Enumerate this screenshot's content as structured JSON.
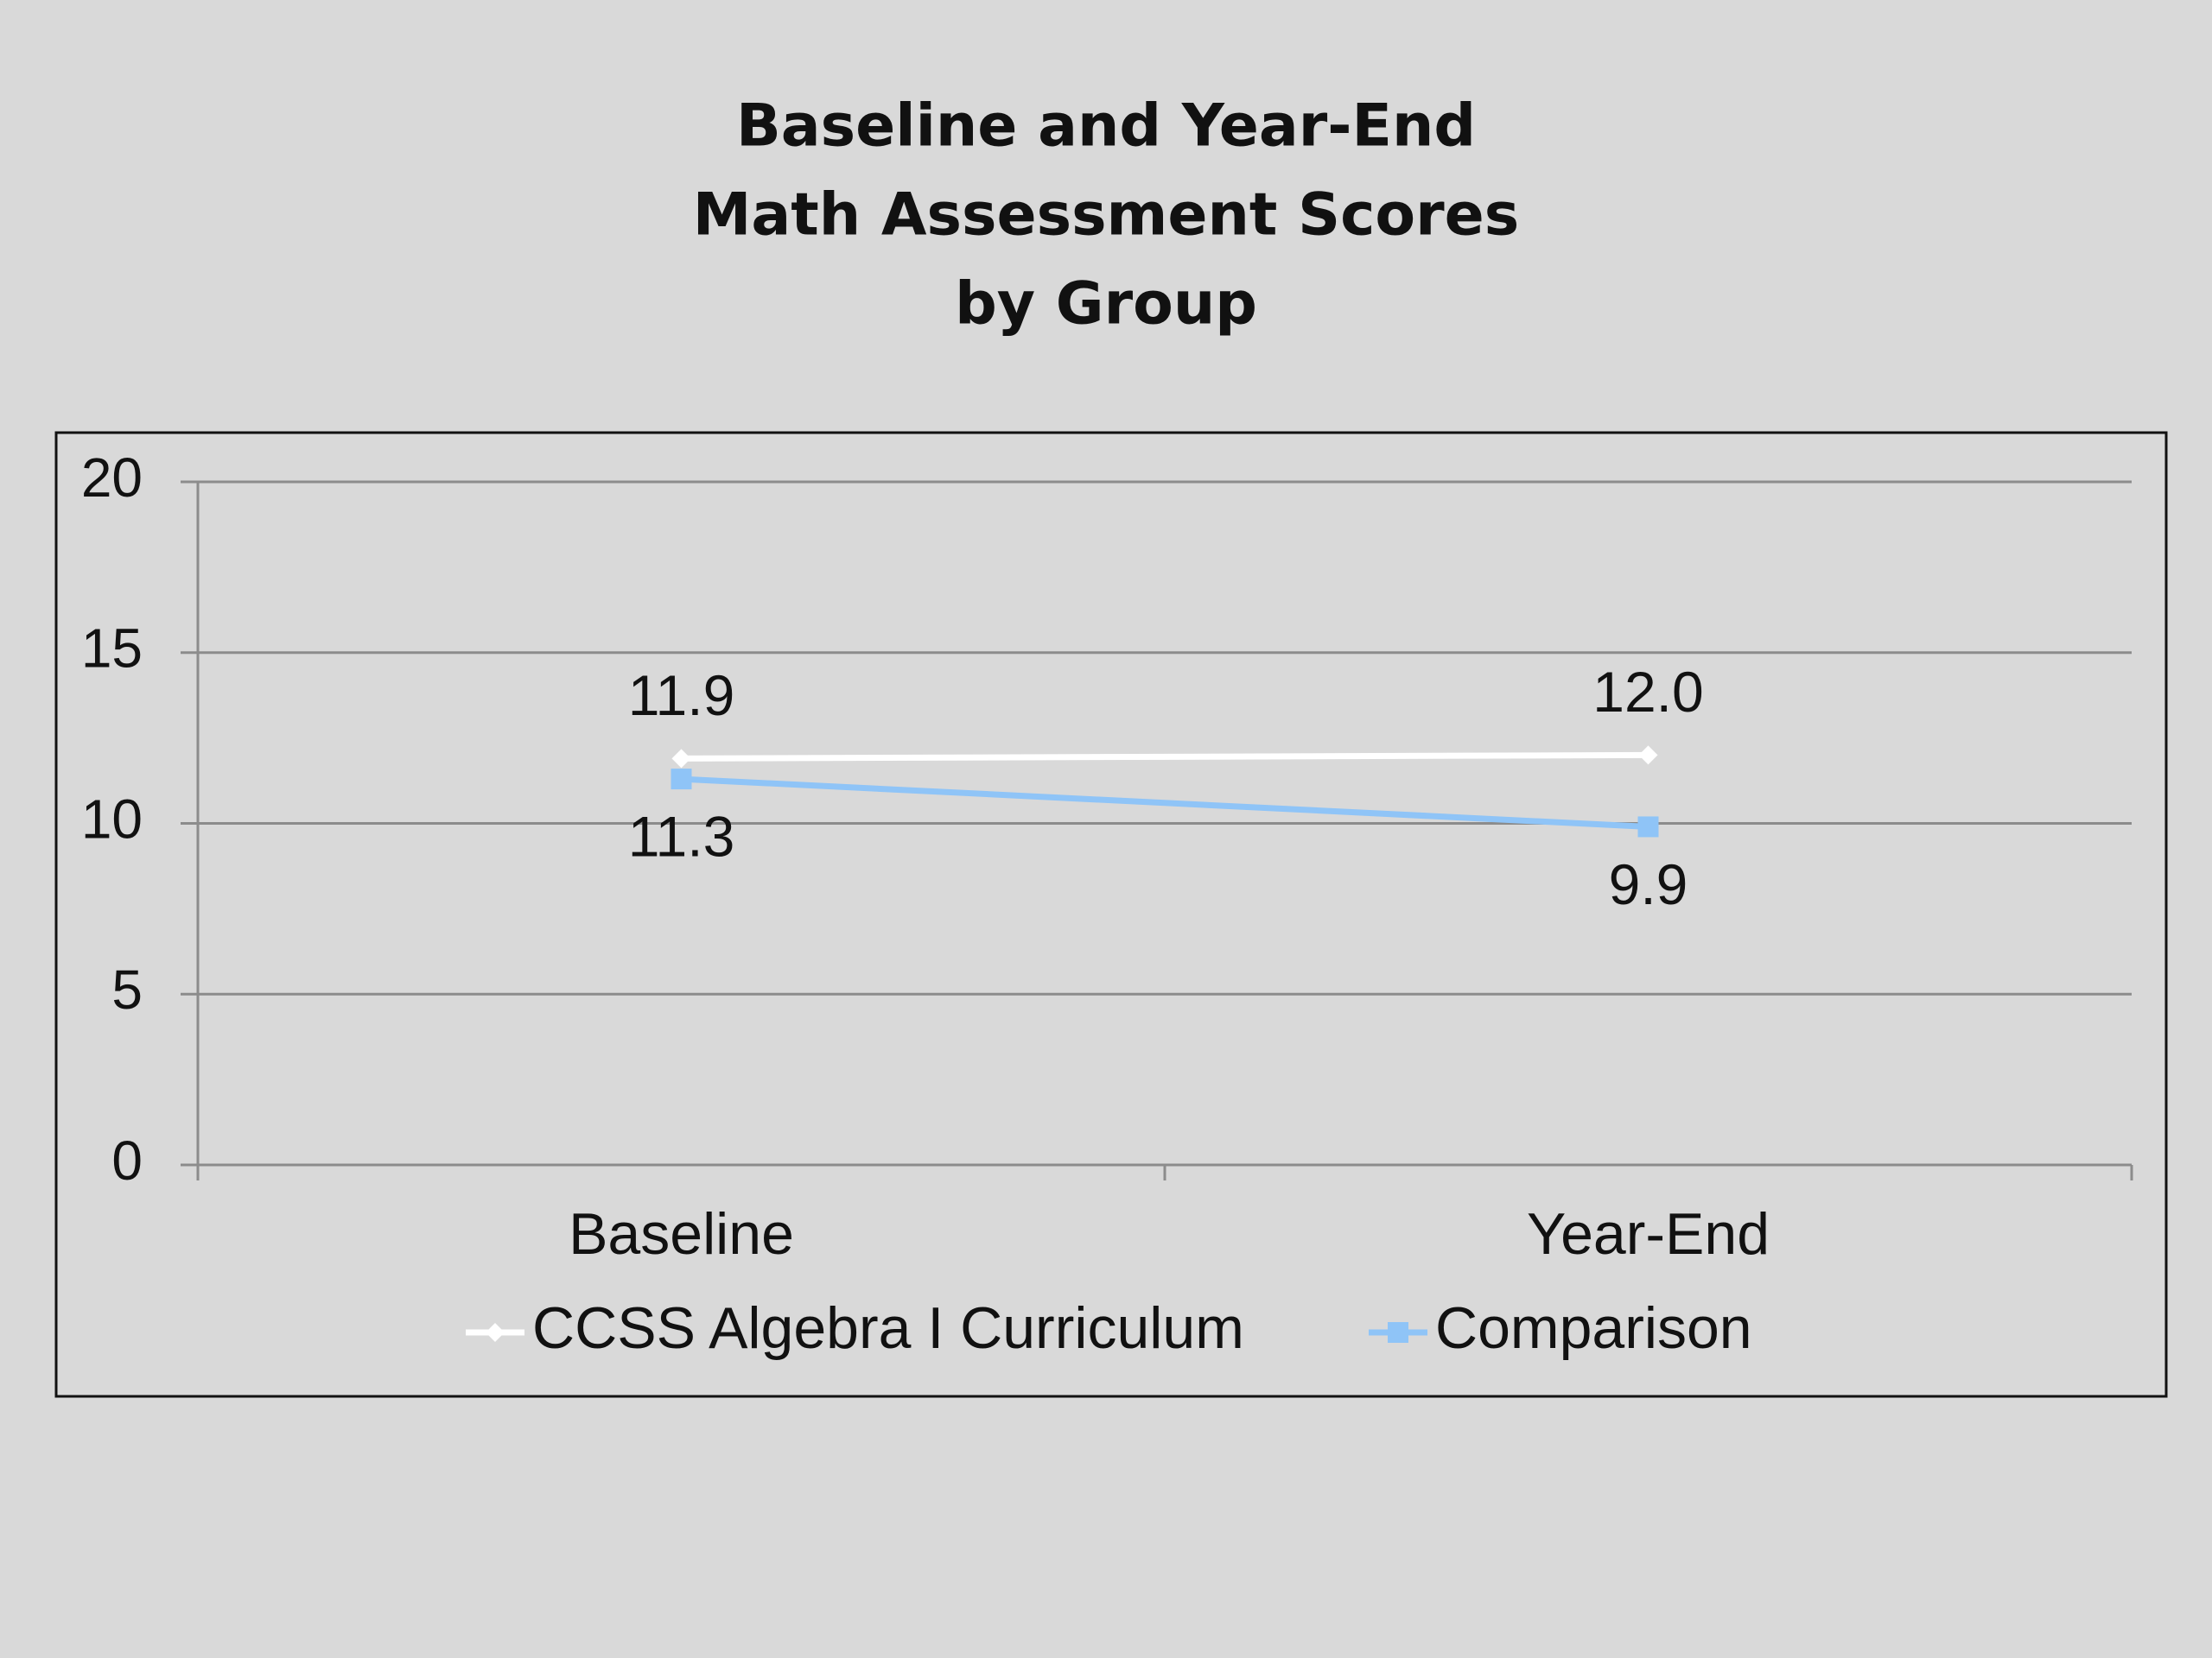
{
  "chart_data": {
    "type": "line",
    "title": [
      "Baseline and Year-End",
      "Math Assessment Scores",
      "by Group"
    ],
    "categories": [
      "Baseline",
      "Year-End"
    ],
    "series": [
      {
        "name": "CCSS Algebra I Curriculum",
        "color": "#ffffff",
        "marker": "diamond",
        "values": [
          11.9,
          12.0
        ],
        "value_labels": [
          "11.9",
          "12.0"
        ],
        "label_position": "above"
      },
      {
        "name": "Comparison",
        "color": "#8fc4f7",
        "marker": "square",
        "values": [
          11.3,
          9.9
        ],
        "label_position": "below"
      }
    ],
    "ylim": [
      0,
      20
    ],
    "yticks": [
      0,
      5,
      10,
      15,
      20
    ],
    "grid": true,
    "legend": "bottom"
  }
}
